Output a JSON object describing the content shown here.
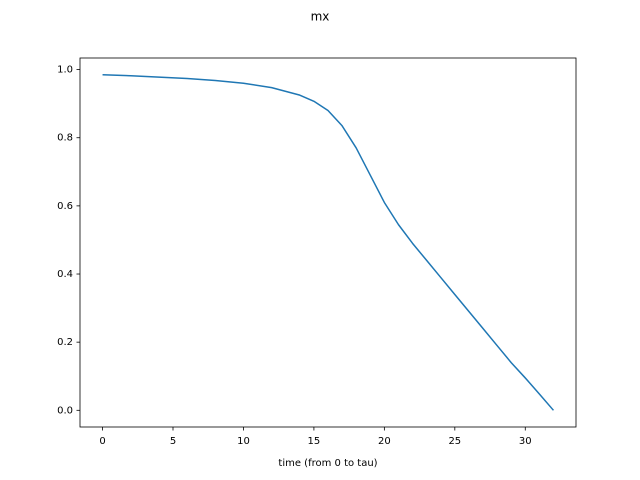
{
  "chart_data": {
    "type": "line",
    "title": "mx",
    "x_label": "time (from 0 to tau)",
    "x": [
      0,
      2,
      4,
      6,
      8,
      10,
      12,
      14,
      15,
      16,
      17,
      18,
      19,
      20,
      21,
      22,
      23,
      24,
      25,
      26,
      27,
      28,
      29,
      30,
      31,
      32
    ],
    "series": [
      {
        "name": "mx",
        "color": "#1f77b4",
        "values": [
          0.985,
          0.982,
          0.978,
          0.974,
          0.968,
          0.96,
          0.947,
          0.925,
          0.907,
          0.88,
          0.835,
          0.77,
          0.69,
          0.61,
          0.545,
          0.49,
          0.44,
          0.39,
          0.34,
          0.29,
          0.24,
          0.19,
          0.14,
          0.095,
          0.048,
          0.0
        ]
      }
    ],
    "xlim": [
      -1.6,
      33.6
    ],
    "xticks": [
      0,
      5,
      10,
      15,
      20,
      25,
      30
    ],
    "ylim": [
      -0.049,
      1.034
    ],
    "yticks": [
      {
        "value": 0,
        "label": "0.0"
      },
      {
        "value": 0.2,
        "label": "0.2"
      },
      {
        "value": 0.4,
        "label": "0.4"
      },
      {
        "value": 0.6,
        "label": "0.6"
      },
      {
        "value": 0.8,
        "label": "0.8"
      },
      {
        "value": 1,
        "label": "1.0"
      }
    ],
    "grid": false
  }
}
